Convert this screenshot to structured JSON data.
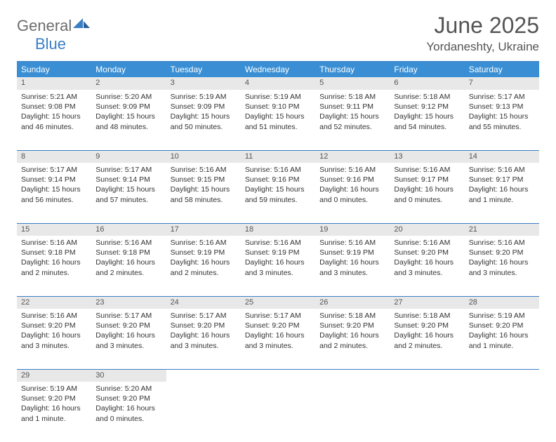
{
  "logo": {
    "general": "General",
    "blue": "Blue"
  },
  "title": "June 2025",
  "location": "Yordaneshty, Ukraine",
  "colors": {
    "header_bg": "#3a8fd4",
    "header_text": "#ffffff",
    "rule": "#3a7fc4",
    "daynum_bg": "#e8e8e8",
    "text": "#333333",
    "logo_gray": "#6c6c6c",
    "logo_blue": "#3a7fc4",
    "title_color": "#555555"
  },
  "weekdays": [
    "Sunday",
    "Monday",
    "Tuesday",
    "Wednesday",
    "Thursday",
    "Friday",
    "Saturday"
  ],
  "weeks": [
    [
      {
        "n": "1",
        "sr": "5:21 AM",
        "ss": "9:08 PM",
        "dl": "15 hours and 46 minutes."
      },
      {
        "n": "2",
        "sr": "5:20 AM",
        "ss": "9:09 PM",
        "dl": "15 hours and 48 minutes."
      },
      {
        "n": "3",
        "sr": "5:19 AM",
        "ss": "9:09 PM",
        "dl": "15 hours and 50 minutes."
      },
      {
        "n": "4",
        "sr": "5:19 AM",
        "ss": "9:10 PM",
        "dl": "15 hours and 51 minutes."
      },
      {
        "n": "5",
        "sr": "5:18 AM",
        "ss": "9:11 PM",
        "dl": "15 hours and 52 minutes."
      },
      {
        "n": "6",
        "sr": "5:18 AM",
        "ss": "9:12 PM",
        "dl": "15 hours and 54 minutes."
      },
      {
        "n": "7",
        "sr": "5:17 AM",
        "ss": "9:13 PM",
        "dl": "15 hours and 55 minutes."
      }
    ],
    [
      {
        "n": "8",
        "sr": "5:17 AM",
        "ss": "9:14 PM",
        "dl": "15 hours and 56 minutes."
      },
      {
        "n": "9",
        "sr": "5:17 AM",
        "ss": "9:14 PM",
        "dl": "15 hours and 57 minutes."
      },
      {
        "n": "10",
        "sr": "5:16 AM",
        "ss": "9:15 PM",
        "dl": "15 hours and 58 minutes."
      },
      {
        "n": "11",
        "sr": "5:16 AM",
        "ss": "9:16 PM",
        "dl": "15 hours and 59 minutes."
      },
      {
        "n": "12",
        "sr": "5:16 AM",
        "ss": "9:16 PM",
        "dl": "16 hours and 0 minutes."
      },
      {
        "n": "13",
        "sr": "5:16 AM",
        "ss": "9:17 PM",
        "dl": "16 hours and 0 minutes."
      },
      {
        "n": "14",
        "sr": "5:16 AM",
        "ss": "9:17 PM",
        "dl": "16 hours and 1 minute."
      }
    ],
    [
      {
        "n": "15",
        "sr": "5:16 AM",
        "ss": "9:18 PM",
        "dl": "16 hours and 2 minutes."
      },
      {
        "n": "16",
        "sr": "5:16 AM",
        "ss": "9:18 PM",
        "dl": "16 hours and 2 minutes."
      },
      {
        "n": "17",
        "sr": "5:16 AM",
        "ss": "9:19 PM",
        "dl": "16 hours and 2 minutes."
      },
      {
        "n": "18",
        "sr": "5:16 AM",
        "ss": "9:19 PM",
        "dl": "16 hours and 3 minutes."
      },
      {
        "n": "19",
        "sr": "5:16 AM",
        "ss": "9:19 PM",
        "dl": "16 hours and 3 minutes."
      },
      {
        "n": "20",
        "sr": "5:16 AM",
        "ss": "9:20 PM",
        "dl": "16 hours and 3 minutes."
      },
      {
        "n": "21",
        "sr": "5:16 AM",
        "ss": "9:20 PM",
        "dl": "16 hours and 3 minutes."
      }
    ],
    [
      {
        "n": "22",
        "sr": "5:16 AM",
        "ss": "9:20 PM",
        "dl": "16 hours and 3 minutes."
      },
      {
        "n": "23",
        "sr": "5:17 AM",
        "ss": "9:20 PM",
        "dl": "16 hours and 3 minutes."
      },
      {
        "n": "24",
        "sr": "5:17 AM",
        "ss": "9:20 PM",
        "dl": "16 hours and 3 minutes."
      },
      {
        "n": "25",
        "sr": "5:17 AM",
        "ss": "9:20 PM",
        "dl": "16 hours and 3 minutes."
      },
      {
        "n": "26",
        "sr": "5:18 AM",
        "ss": "9:20 PM",
        "dl": "16 hours and 2 minutes."
      },
      {
        "n": "27",
        "sr": "5:18 AM",
        "ss": "9:20 PM",
        "dl": "16 hours and 2 minutes."
      },
      {
        "n": "28",
        "sr": "5:19 AM",
        "ss": "9:20 PM",
        "dl": "16 hours and 1 minute."
      }
    ],
    [
      {
        "n": "29",
        "sr": "5:19 AM",
        "ss": "9:20 PM",
        "dl": "16 hours and 1 minute."
      },
      {
        "n": "30",
        "sr": "5:20 AM",
        "ss": "9:20 PM",
        "dl": "16 hours and 0 minutes."
      },
      null,
      null,
      null,
      null,
      null
    ]
  ],
  "labels": {
    "sunrise": "Sunrise:",
    "sunset": "Sunset:",
    "daylight": "Daylight:"
  }
}
